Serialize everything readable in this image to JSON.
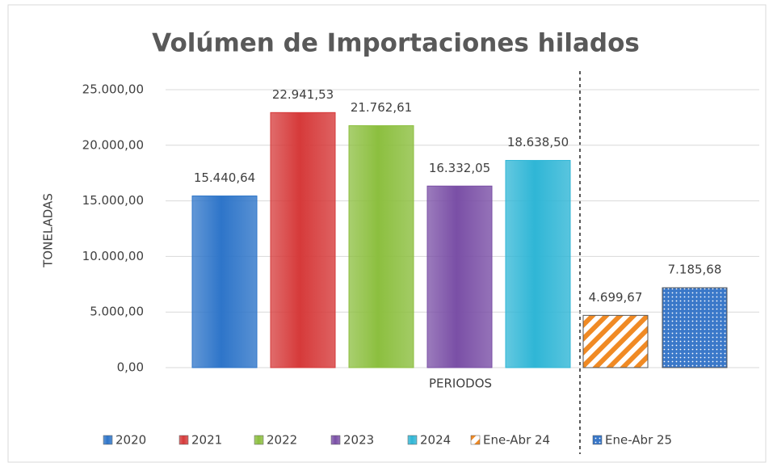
{
  "chart_data": {
    "type": "bar",
    "title": "Volúmen de Importaciones  hilados",
    "ylabel": "TONELADAS",
    "xlabel": "PERIODOS",
    "categories": [
      "2020",
      "2021",
      "2022",
      "2023",
      "2024",
      "Ene-Abr 24",
      "Ene-Abr 25"
    ],
    "values": [
      15440.64,
      22941.53,
      21762.61,
      16332.05,
      18638.5,
      4699.67,
      7185.68
    ],
    "value_labels": [
      "15.440,64",
      "22.941,53",
      "21.762,61",
      "16.332,05",
      "18.638,50",
      "4.699,67",
      "7.185,68"
    ],
    "colors": [
      "#2e75c9",
      "#d63a3a",
      "#8cbf3f",
      "#7a4fa6",
      "#2fb6d6",
      "#f08a24",
      "#3a78c9"
    ],
    "fills": [
      "solid",
      "solid",
      "solid",
      "solid",
      "solid",
      "stripes",
      "dots"
    ],
    "ylim": [
      0,
      25000
    ],
    "yticks": [
      {
        "value": 0,
        "label": "0,00"
      },
      {
        "value": 5000,
        "label": "5.000,00"
      },
      {
        "value": 10000,
        "label": "10.000,00"
      },
      {
        "value": 15000,
        "label": "15.000,00"
      },
      {
        "value": 20000,
        "label": "20.000,00"
      },
      {
        "value": 25000,
        "label": "25.000,00"
      }
    ],
    "grid": true,
    "legend": "bottom"
  }
}
